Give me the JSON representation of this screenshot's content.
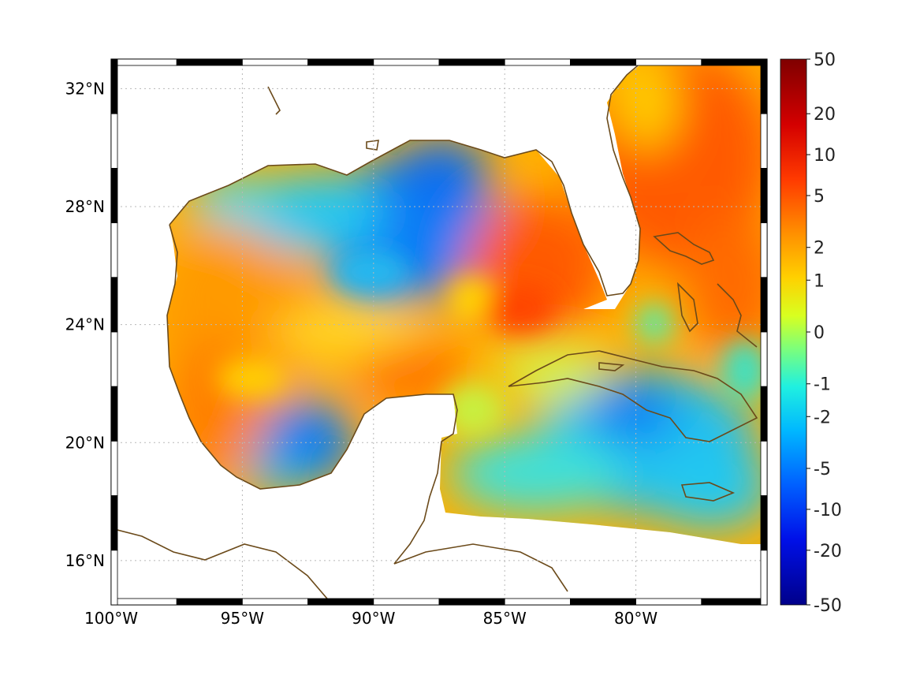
{
  "map": {
    "region": "Gulf of Mexico and Caribbean",
    "lon_range": [
      -100,
      -75
    ],
    "lat_range": [
      14.5,
      33
    ],
    "x_ticks": [
      {
        "lon": -100,
        "label": "100°W"
      },
      {
        "lon": -95,
        "label": "95°W"
      },
      {
        "lon": -90,
        "label": "90°W"
      },
      {
        "lon": -85,
        "label": "85°W"
      },
      {
        "lon": -80,
        "label": "80°W"
      }
    ],
    "y_ticks": [
      {
        "lat": 32,
        "label": "32°N"
      },
      {
        "lat": 28,
        "label": "28°N"
      },
      {
        "lat": 24,
        "label": "24°N"
      },
      {
        "lat": 20,
        "label": "20°N"
      },
      {
        "lat": 16,
        "label": "16°N"
      }
    ],
    "grid": true,
    "grid_style": "dotted",
    "frame": "black-white dashed border",
    "coastline_color": "#6b4a1a",
    "land_color": "#ffffff"
  },
  "colorbar": {
    "colormap": "jet",
    "scale": "symmetric log-like",
    "placement": "right",
    "ticks": [
      {
        "value": 50,
        "label": "50"
      },
      {
        "value": 20,
        "label": "20"
      },
      {
        "value": 10,
        "label": "10"
      },
      {
        "value": 5,
        "label": "5"
      },
      {
        "value": 2,
        "label": "2"
      },
      {
        "value": 1,
        "label": "1"
      },
      {
        "value": 0,
        "label": "0"
      },
      {
        "value": -1,
        "label": "-1"
      },
      {
        "value": -2,
        "label": "-2"
      },
      {
        "value": -5,
        "label": "-5"
      },
      {
        "value": -10,
        "label": "-10"
      },
      {
        "value": -20,
        "label": "-20"
      },
      {
        "value": -50,
        "label": "-50"
      }
    ],
    "tick_fractions": [
      0.0,
      0.1,
      0.175,
      0.25,
      0.345,
      0.405,
      0.5,
      0.595,
      0.655,
      0.75,
      0.825,
      0.9,
      1.0
    ]
  },
  "field": {
    "regions": [
      {
        "name": "northern-gulf-low",
        "value": -6
      },
      {
        "name": "bay-of-campeche-low",
        "value": -6
      },
      {
        "name": "loop-current-high",
        "value": 8
      },
      {
        "name": "western-gulf-high",
        "value": 4
      },
      {
        "name": "atlantic-high",
        "value": 8
      },
      {
        "name": "caribbean-low",
        "value": -3
      }
    ]
  }
}
